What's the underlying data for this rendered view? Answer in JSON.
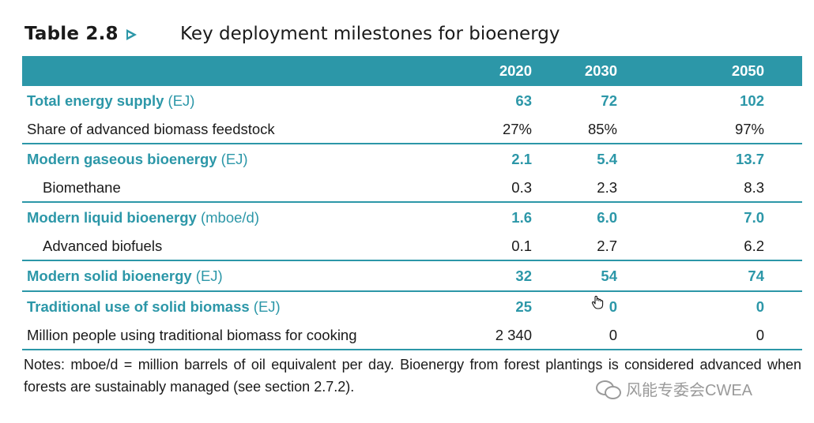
{
  "table_number": "Table 2.8",
  "title": "Key deployment milestones for bioenergy",
  "columns": [
    "",
    "2020",
    "2030",
    "2050"
  ],
  "rows": [
    {
      "label": "Total energy supply",
      "unit": " (EJ)",
      "values": [
        "63",
        "72",
        "102"
      ]
    },
    {
      "label": "Share of advanced biomass feedstock",
      "values": [
        "27%",
        "85%",
        "97%"
      ]
    },
    {
      "label": "Modern gaseous bioenergy",
      "unit": " (EJ)",
      "values": [
        "2.1",
        "5.4",
        "13.7"
      ]
    },
    {
      "label": "Biomethane",
      "values": [
        "0.3",
        "2.3",
        "8.3"
      ]
    },
    {
      "label": "Modern liquid bioenergy",
      "unit": " (mboe/d)",
      "values": [
        "1.6",
        "6.0",
        "7.0"
      ]
    },
    {
      "label": "Advanced biofuels",
      "values": [
        "0.1",
        "2.7",
        "6.2"
      ]
    },
    {
      "label": "Modern solid bioenergy",
      "unit": " (EJ)",
      "values": [
        "32",
        "54",
        "74"
      ]
    },
    {
      "label": "Traditional use of solid biomass",
      "unit": " (EJ)",
      "values": [
        "25",
        "0",
        "0"
      ]
    },
    {
      "label": "Million people using traditional biomass for cooking",
      "values": [
        "2 340",
        "0",
        "0"
      ]
    }
  ],
  "notes": "Notes: mboe/d = million barrels of oil equivalent per day. Bioenergy from forest plantings is considered advanced when forests are sustainably managed (see section 2.7.2).",
  "watermark": "风能专委会CWEA",
  "colors": {
    "accent": "#2c97a8",
    "text": "#1a1a1a",
    "watermark": "#9a9a9a"
  },
  "icons": {
    "title_marker": "triangle-arrow-icon",
    "watermark_logo": "wechat-icon",
    "cursor": "hand-cursor-icon"
  }
}
